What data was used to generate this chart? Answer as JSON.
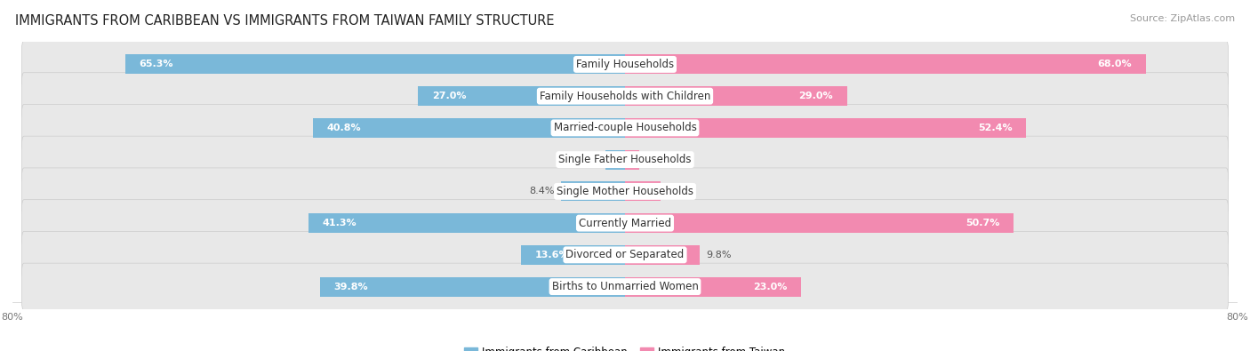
{
  "title": "IMMIGRANTS FROM CARIBBEAN VS IMMIGRANTS FROM TAIWAN FAMILY STRUCTURE",
  "source": "Source: ZipAtlas.com",
  "categories": [
    "Family Households",
    "Family Households with Children",
    "Married-couple Households",
    "Single Father Households",
    "Single Mother Households",
    "Currently Married",
    "Divorced or Separated",
    "Births to Unmarried Women"
  ],
  "caribbean_values": [
    65.3,
    27.0,
    40.8,
    2.5,
    8.4,
    41.3,
    13.6,
    39.8
  ],
  "taiwan_values": [
    68.0,
    29.0,
    52.4,
    1.8,
    4.7,
    50.7,
    9.8,
    23.0
  ],
  "max_val": 80.0,
  "caribbean_color": "#7ab8d9",
  "taiwan_color": "#f28ab0",
  "caribbean_label": "Immigrants from Caribbean",
  "taiwan_label": "Immigrants from Taiwan",
  "fig_bg": "#ffffff",
  "row_bg": "#e8e8e8",
  "bar_height": 0.62,
  "title_fontsize": 10.5,
  "label_fontsize": 8.5,
  "value_fontsize": 8,
  "tick_fontsize": 8,
  "source_fontsize": 8,
  "large_threshold": 10,
  "white_label_color": "#ffffff",
  "dark_label_color": "#555555"
}
